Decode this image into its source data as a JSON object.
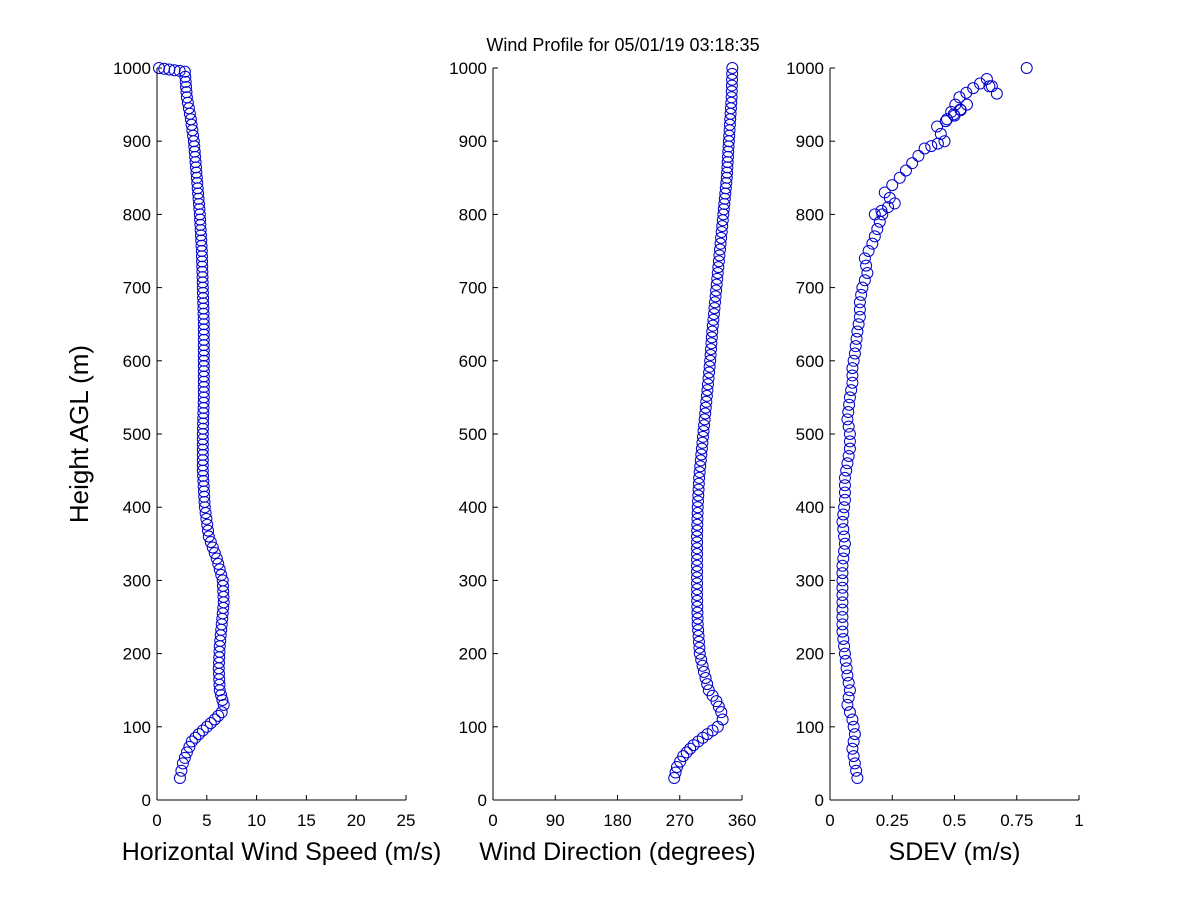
{
  "title": "Wind Profile for  05/01/19 03:18:35",
  "colors": {
    "marker": "#0000cc",
    "axes": "#000000",
    "background": "#ffffff"
  },
  "chart_data": [
    {
      "type": "scatter",
      "xlabel": "Horizontal Wind Speed (m/s)",
      "ylabel": "Height AGL (m)",
      "xlim": [
        0,
        25
      ],
      "ylim": [
        0,
        1000
      ],
      "xticks": [
        "0",
        "5",
        "10",
        "15",
        "20",
        "25"
      ],
      "yticks": [
        "0",
        "100",
        "200",
        "300",
        "400",
        "500",
        "600",
        "700",
        "800",
        "900",
        "1000"
      ],
      "grid": false,
      "marker": "open-circle",
      "x": [
        2.3,
        2.6,
        3.0,
        3.5,
        4.2,
        5.0,
        5.8,
        6.5,
        6.7,
        6.3,
        6.2,
        6.3,
        6.5,
        6.7,
        6.6,
        6.0,
        5.2,
        4.8,
        4.6,
        4.6,
        4.7,
        4.7,
        4.7,
        4.6,
        4.5,
        4.3,
        4.0,
        3.7,
        3.4,
        3.0,
        2.8,
        0.2
      ],
      "y": [
        30,
        50,
        65,
        80,
        90,
        100,
        110,
        120,
        130,
        150,
        180,
        210,
        240,
        270,
        300,
        330,
        360,
        400,
        450,
        500,
        550,
        600,
        650,
        700,
        750,
        800,
        850,
        900,
        930,
        960,
        995,
        1000
      ]
    },
    {
      "type": "scatter",
      "xlabel": "Wind Direction (degrees)",
      "ylabel": "",
      "xlim": [
        0,
        360
      ],
      "ylim": [
        0,
        1000
      ],
      "xticks": [
        "0",
        "90",
        "180",
        "270",
        "360"
      ],
      "yticks": [
        "0",
        "100",
        "200",
        "300",
        "400",
        "500",
        "600",
        "700",
        "800",
        "900",
        "1000"
      ],
      "grid": false,
      "marker": "open-circle",
      "x": [
        262,
        266,
        275,
        290,
        310,
        325,
        332,
        330,
        323,
        312,
        305,
        299,
        296,
        295,
        295,
        295,
        296,
        298,
        302,
        306,
        310,
        314,
        317,
        321,
        325,
        329,
        333,
        338,
        341,
        343,
        345,
        346
      ],
      "y": [
        30,
        45,
        60,
        75,
        90,
        100,
        110,
        120,
        135,
        150,
        175,
        200,
        240,
        280,
        320,
        360,
        400,
        440,
        480,
        520,
        560,
        600,
        640,
        680,
        720,
        760,
        800,
        850,
        900,
        930,
        960,
        1000
      ]
    },
    {
      "type": "scatter",
      "xlabel": "SDEV  (m/s)",
      "ylabel": "",
      "xlim": [
        0,
        1
      ],
      "ylim": [
        0,
        1000
      ],
      "xticks": [
        "0",
        "0.25",
        "0.5",
        "0.75",
        "1"
      ],
      "yticks": [
        "0",
        "100",
        "200",
        "300",
        "400",
        "500",
        "600",
        "700",
        "800",
        "900",
        "1000"
      ],
      "grid": false,
      "marker": "open-circle",
      "x": [
        0.11,
        0.1,
        0.09,
        0.1,
        0.09,
        0.07,
        0.08,
        0.07,
        0.06,
        0.05,
        0.05,
        0.05,
        0.05,
        0.06,
        0.05,
        0.06,
        0.06,
        0.07,
        0.08,
        0.08,
        0.07,
        0.08,
        0.09,
        0.09,
        0.1,
        0.11,
        0.12,
        0.12,
        0.13,
        0.15,
        0.14,
        0.17,
        0.19,
        0.21,
        0.18,
        0.26,
        0.22,
        0.28,
        0.33,
        0.38,
        0.46,
        0.43,
        0.5,
        0.55,
        0.47,
        0.52,
        0.63,
        0.67,
        0.64,
        0.79
      ],
      "y": [
        30,
        50,
        70,
        90,
        110,
        130,
        150,
        170,
        200,
        230,
        260,
        290,
        320,
        350,
        380,
        410,
        440,
        460,
        480,
        500,
        520,
        550,
        570,
        590,
        610,
        640,
        660,
        680,
        700,
        720,
        740,
        760,
        780,
        800,
        800,
        815,
        830,
        850,
        870,
        890,
        900,
        920,
        935,
        950,
        930,
        960,
        985,
        965,
        975,
        1000
      ]
    }
  ]
}
